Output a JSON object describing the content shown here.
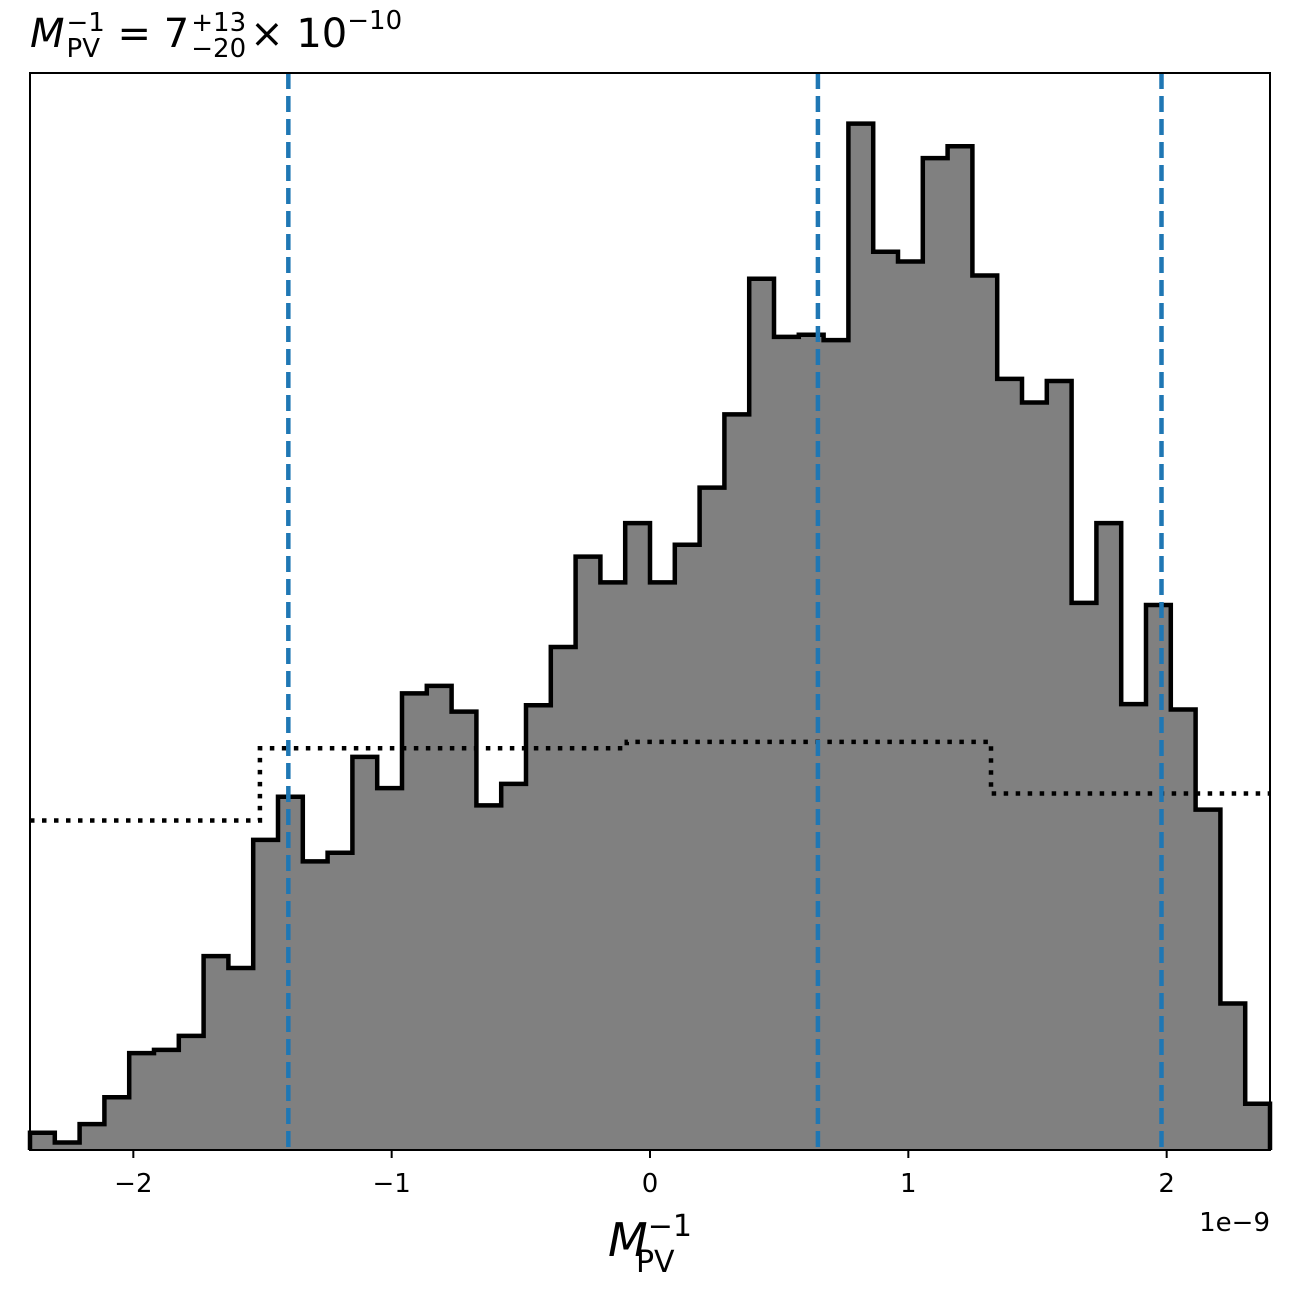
{
  "title": {
    "symbol": "M",
    "symbol_sub": "PV",
    "symbol_sup": "−1",
    "equals": " = ",
    "median": "7",
    "err_plus": "+13",
    "err_minus": "−20",
    "multiplier": "× 10",
    "exponent": "−10"
  },
  "chart_data": {
    "type": "histogram",
    "xlabel": {
      "symbol": "M",
      "sub": "PV",
      "sup": "−1"
    },
    "offset_label": "1e−9",
    "xlim": [
      -2.4,
      2.4
    ],
    "ylim": [
      0,
      1.0
    ],
    "xticks": [
      -2,
      -1,
      0,
      1,
      2
    ],
    "xtick_labels": [
      "−2",
      "−1",
      "0",
      "1",
      "2"
    ],
    "bin_edges": [
      -2.4,
      -2.304,
      -2.208,
      -2.112,
      -2.016,
      -1.92,
      -1.824,
      -1.728,
      -1.632,
      -1.536,
      -1.44,
      -1.344,
      -1.248,
      -1.152,
      -1.056,
      -0.96,
      -0.864,
      -0.768,
      -0.672,
      -0.576,
      -0.48,
      -0.384,
      -0.288,
      -0.192,
      -0.096,
      0.0,
      0.096,
      0.192,
      0.288,
      0.384,
      0.48,
      0.576,
      0.672,
      0.768,
      0.864,
      0.96,
      1.056,
      1.152,
      1.248,
      1.344,
      1.44,
      1.536,
      1.632,
      1.728,
      1.824,
      1.92,
      2.016,
      2.112,
      2.208,
      2.304,
      2.4
    ],
    "counts": [
      0.016,
      0.007,
      0.024,
      0.049,
      0.09,
      0.093,
      0.106,
      0.18,
      0.169,
      0.288,
      0.328,
      0.268,
      0.276,
      0.365,
      0.336,
      0.424,
      0.431,
      0.407,
      0.32,
      0.34,
      0.413,
      0.467,
      0.551,
      0.527,
      0.582,
      0.527,
      0.562,
      0.615,
      0.683,
      0.809,
      0.755,
      0.757,
      0.752,
      0.953,
      0.834,
      0.825,
      0.921,
      0.932,
      0.812,
      0.716,
      0.694,
      0.714,
      0.508,
      0.582,
      0.414,
      0.506,
      0.409,
      0.316,
      0.136,
      0.043
    ],
    "prior": {
      "style": "dotted",
      "x": [
        -2.4,
        -1.51,
        -1.51,
        -0.09,
        -0.09,
        1.32,
        1.32,
        2.4
      ],
      "y": [
        0.306,
        0.306,
        0.373,
        0.373,
        0.379,
        0.379,
        0.331,
        0.331
      ]
    },
    "quantile_lines": [
      -1.4,
      0.65,
      1.98
    ],
    "colors": {
      "fill": "#808080",
      "edge": "#000000",
      "quantile": "#1f77b4",
      "prior": "#000000"
    }
  }
}
